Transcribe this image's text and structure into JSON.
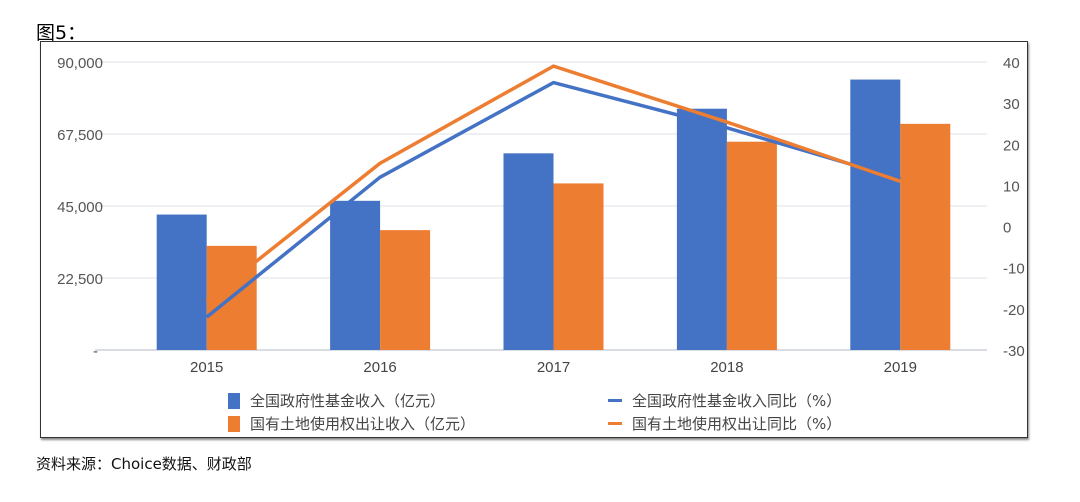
{
  "title": "图5：",
  "source": "资料来源：Choice数据、财政部",
  "chart_data": {
    "type": "bar+line",
    "categories": [
      "2015",
      "2016",
      "2017",
      "2018",
      "2019"
    ],
    "left_axis": {
      "ylim": [
        0,
        90000
      ],
      "ticks": [
        "-",
        "22,500",
        "45,000",
        "67,500",
        "90,000"
      ]
    },
    "right_axis": {
      "ylim": [
        -30,
        40
      ],
      "ticks": [
        "-30",
        "-20",
        "-10",
        "0",
        "10",
        "20",
        "30",
        "40"
      ]
    },
    "grid": true,
    "legend_placement": "bottom",
    "series": [
      {
        "name": "全国政府性基金收入（亿元）",
        "type": "bar",
        "axis": "left",
        "color": "#4472C4",
        "values": [
          42330,
          46619,
          61462,
          75405,
          84516
        ]
      },
      {
        "name": "国有土地使用权出让收入（亿元）",
        "type": "bar",
        "axis": "left",
        "color": "#ED7D31",
        "values": [
          32547,
          37457,
          52059,
          65096,
          70679
        ]
      },
      {
        "name": "全国政府性基金收入同比（%）",
        "type": "line",
        "axis": "right",
        "color": "#4472C4",
        "values": [
          -22,
          12,
          35,
          24,
          11.6
        ]
      },
      {
        "name": "国有土地使用权出让同比（%）",
        "type": "line",
        "axis": "right",
        "color": "#ED7D31",
        "values": [
          -18,
          15.4,
          39,
          25.4,
          11
        ]
      }
    ]
  }
}
